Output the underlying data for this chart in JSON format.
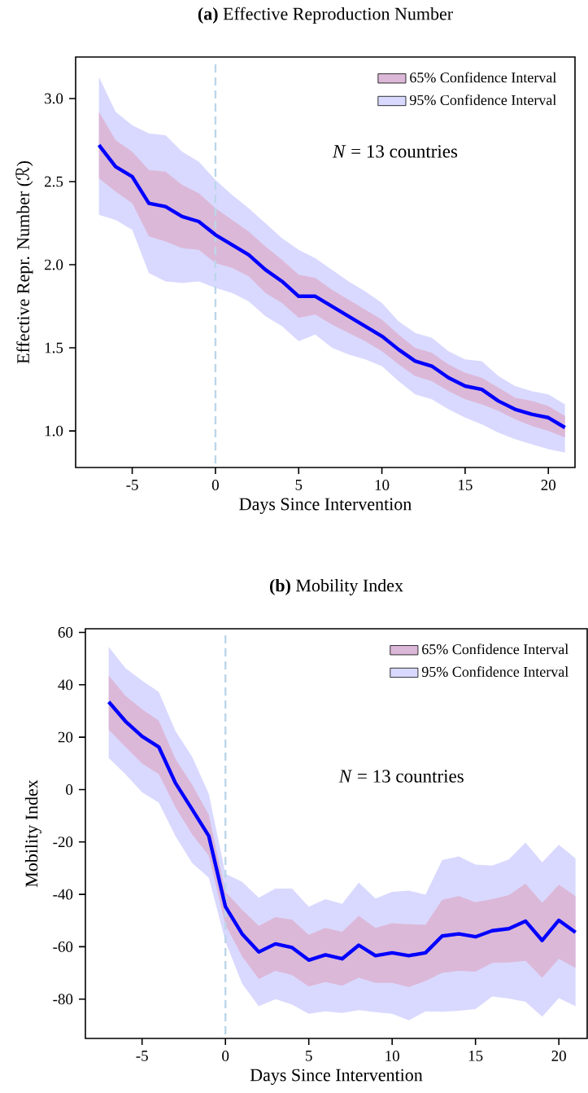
{
  "chart_data": [
    {
      "type": "line",
      "title": "**(a)** Effective Reproduction Number",
      "xlabel": "Days Since Intervention",
      "ylabel": "Effective Repr. Number (ℛ)",
      "x": [
        -7,
        -6,
        -5,
        -4,
        -3,
        -2,
        -1,
        0,
        1,
        2,
        3,
        4,
        5,
        6,
        7,
        8,
        9,
        10,
        11,
        12,
        13,
        14,
        15,
        16,
        17,
        18,
        19,
        20,
        21
      ],
      "series": [
        {
          "name": "95% Confidence Interval",
          "color": "#d9d9ff",
          "values": [
            null,
            null,
            null,
            null,
            null,
            null,
            null,
            null,
            null,
            null,
            null,
            null,
            null,
            null,
            null,
            null,
            null,
            null,
            null,
            null,
            null,
            null,
            null,
            null,
            null,
            null,
            null,
            null,
            null
          ],
          "upper": [
            3.13,
            2.92,
            2.84,
            2.79,
            2.78,
            2.68,
            2.62,
            2.51,
            2.42,
            2.34,
            2.25,
            2.16,
            2.09,
            2.04,
            1.97,
            1.9,
            1.84,
            1.77,
            1.66,
            1.59,
            1.56,
            1.48,
            1.43,
            1.42,
            1.33,
            1.27,
            1.24,
            1.22,
            1.16
          ],
          "lower": [
            2.3,
            2.27,
            2.21,
            1.95,
            1.9,
            1.89,
            1.9,
            1.86,
            1.83,
            1.78,
            1.69,
            1.63,
            1.54,
            1.58,
            1.5,
            1.46,
            1.43,
            1.39,
            1.3,
            1.22,
            1.19,
            1.13,
            1.08,
            1.04,
            0.99,
            0.95,
            0.92,
            0.89,
            0.87
          ]
        },
        {
          "name": "65% Confidence Interval",
          "color": "#dcb8d8",
          "values": [
            null,
            null,
            null,
            null,
            null,
            null,
            null,
            null,
            null,
            null,
            null,
            null,
            null,
            null,
            null,
            null,
            null,
            null,
            null,
            null,
            null,
            null,
            null,
            null,
            null,
            null,
            null,
            null,
            null
          ],
          "upper": [
            2.92,
            2.75,
            2.68,
            2.57,
            2.56,
            2.48,
            2.43,
            2.34,
            2.27,
            2.2,
            2.11,
            2.03,
            1.94,
            1.92,
            1.85,
            1.79,
            1.73,
            1.67,
            1.58,
            1.5,
            1.47,
            1.4,
            1.35,
            1.32,
            1.26,
            1.2,
            1.18,
            1.15,
            1.09
          ],
          "lower": [
            2.52,
            2.44,
            2.37,
            2.17,
            2.14,
            2.1,
            2.09,
            2.01,
            1.98,
            1.93,
            1.83,
            1.77,
            1.68,
            1.7,
            1.64,
            1.59,
            1.54,
            1.48,
            1.4,
            1.33,
            1.3,
            1.24,
            1.19,
            1.16,
            1.12,
            1.07,
            1.03,
            1.0,
            0.96
          ]
        },
        {
          "color": "#0000ff",
          "values": [
            2.72,
            2.59,
            2.53,
            2.37,
            2.35,
            2.29,
            2.26,
            2.18,
            2.12,
            2.06,
            1.97,
            1.9,
            1.81,
            1.81,
            1.75,
            1.69,
            1.63,
            1.57,
            1.49,
            1.42,
            1.39,
            1.32,
            1.27,
            1.25,
            1.18,
            1.13,
            1.1,
            1.08,
            1.02
          ]
        }
      ],
      "xlim": [
        -8.4,
        21.6
      ],
      "ylim": [
        0.78,
        3.25
      ],
      "xticks": [
        -5,
        0,
        5,
        10,
        15,
        20
      ],
      "yticks": [
        {
          "value": 1,
          "label": "1.0"
        },
        {
          "value": 1.5,
          "label": "1.5"
        },
        {
          "value": 2,
          "label": "2.0"
        },
        {
          "value": 2.5,
          "label": "2.5"
        },
        {
          "value": 3,
          "label": "3.0"
        }
      ],
      "ref_lines": [
        {
          "axis": "x",
          "value": 0,
          "color": "#bcd6e9",
          "line_style": "dashed"
        }
      ],
      "annotations": [
        "*N* = 13 countries"
      ],
      "legend": "top right",
      "grid": false,
      "marker": "none",
      "line_style": "solid"
    },
    {
      "type": "line",
      "title": "**(b)** Mobility Index",
      "xlabel": "Days Since Intervention",
      "ylabel": "Mobility Index",
      "x": [
        -7,
        -6,
        -5,
        -4,
        -3,
        -2,
        -1,
        0,
        1,
        2,
        3,
        4,
        5,
        6,
        7,
        8,
        9,
        10,
        11,
        12,
        13,
        14,
        15,
        16,
        17,
        18,
        19,
        20,
        21
      ],
      "series": [
        {
          "name": "95% Confidence Interval",
          "color": "#d9d9ff",
          "values": [
            null,
            null,
            null,
            null,
            null,
            null,
            null,
            null,
            null,
            null,
            null,
            null,
            null,
            null,
            null,
            null,
            null,
            null,
            null,
            null,
            null,
            null,
            null,
            null,
            null,
            null,
            null,
            null,
            null
          ],
          "upper": [
            54.5,
            46.4,
            41.6,
            37.3,
            22.4,
            12.6,
            -1.6,
            -32.1,
            -35.2,
            -41.3,
            -37.8,
            -37.8,
            -44.7,
            -41.8,
            -43.6,
            -35.5,
            -41.6,
            -39.0,
            -38.6,
            -40.1,
            -26.9,
            -25.5,
            -28.6,
            -29.0,
            -26.7,
            -20.2,
            -27.8,
            -21.1,
            -26.3
          ],
          "lower": [
            12.0,
            5.9,
            -1.0,
            -5.0,
            -17.7,
            -28.0,
            -33.6,
            -58.0,
            -74.1,
            -82.7,
            -80.0,
            -82.1,
            -85.6,
            -84.7,
            -85.3,
            -84.2,
            -85.0,
            -85.6,
            -88.1,
            -84.7,
            -84.8,
            -84.4,
            -83.8,
            -79.0,
            -79.8,
            -81.0,
            -86.7,
            -79.6,
            -82.7
          ]
        },
        {
          "name": "65% Confidence Interval",
          "color": "#dcb8d8",
          "values": [
            null,
            null,
            null,
            null,
            null,
            null,
            null,
            null,
            null,
            null,
            null,
            null,
            null,
            null,
            null,
            null,
            null,
            null,
            null,
            null,
            null,
            null,
            null,
            null,
            null,
            null,
            null,
            null,
            null
          ],
          "upper": [
            43.5,
            35.8,
            30.7,
            26.3,
            11.7,
            1.9,
            -9.6,
            -39.0,
            -45.9,
            -52.0,
            -48.7,
            -49.7,
            -55.4,
            -52.8,
            -54.3,
            -48.2,
            -52.8,
            -51.0,
            -51.4,
            -51.6,
            -42.1,
            -40.7,
            -43.0,
            -41.8,
            -40.3,
            -35.9,
            -43.2,
            -36.3,
            -40.7
          ],
          "lower": [
            22.8,
            16.3,
            9.9,
            5.9,
            -6.7,
            -17.1,
            -25.2,
            -51.6,
            -63.7,
            -72.3,
            -69.2,
            -70.8,
            -75.2,
            -73.5,
            -74.9,
            -71.8,
            -73.8,
            -73.8,
            -75.4,
            -73.1,
            -70.0,
            -69.2,
            -69.5,
            -66.2,
            -66.0,
            -65.4,
            -71.8,
            -64.6,
            -68.1
          ]
        },
        {
          "color": "#0000ff",
          "values": [
            33.5,
            26.1,
            20.3,
            16.3,
            2.5,
            -7.5,
            -17.7,
            -44.7,
            -55.1,
            -62.0,
            -58.9,
            -60.3,
            -65.1,
            -63.1,
            -64.6,
            -59.4,
            -63.4,
            -62.3,
            -63.4,
            -62.3,
            -55.9,
            -55.1,
            -56.2,
            -53.9,
            -53.1,
            -50.2,
            -57.6,
            -49.9,
            -54.5
          ]
        }
      ],
      "xlim": [
        -8.4,
        21.7
      ],
      "ylim": [
        -95,
        61.4
      ],
      "xticks": [
        -5,
        0,
        5,
        10,
        15,
        20
      ],
      "yticks": [
        -80,
        -60,
        -40,
        -20,
        0,
        20,
        40,
        60
      ],
      "ref_lines": [
        {
          "axis": "x",
          "value": 0,
          "color": "#bcd6e9",
          "line_style": "dashed"
        }
      ],
      "annotations": [
        "*N* = 13 countries"
      ],
      "legend": "top right",
      "grid": false,
      "marker": "none",
      "line_style": "solid"
    }
  ]
}
